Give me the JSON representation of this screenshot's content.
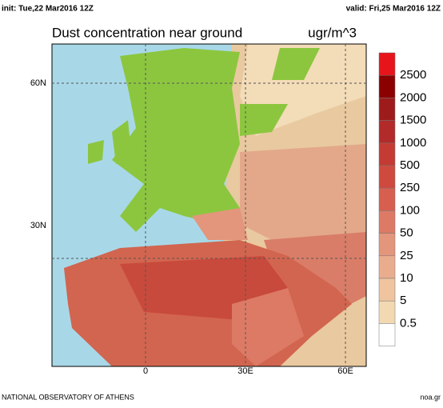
{
  "header": {
    "init": "init: Tue,22 Mar2016 12Z",
    "valid": "valid: Fri,25 Mar2016 12Z"
  },
  "map": {
    "title": "Dust concentration near ground",
    "unit": "ugr/m^3",
    "lat_labels": [
      "60N",
      "30N"
    ],
    "lon_labels": [
      "0",
      "30E",
      "60E"
    ]
  },
  "legend": {
    "labels": [
      "2500",
      "2000",
      "1500",
      "1000",
      "500",
      "250",
      "100",
      "50",
      "25",
      "10",
      "5",
      "0.5"
    ],
    "colors": [
      "#e8141b",
      "#8b0000",
      "#9e1b1b",
      "#b22a2a",
      "#c33b33",
      "#cf4a3e",
      "#d75f4f",
      "#dc7a66",
      "#e3967c",
      "#e9ad8e",
      "#efc49f",
      "#f3d9b2",
      "#ffffff"
    ]
  },
  "footer": {
    "left": "NATIONAL OBSERVATORY OF ATHENS",
    "right": "noa.gr"
  }
}
